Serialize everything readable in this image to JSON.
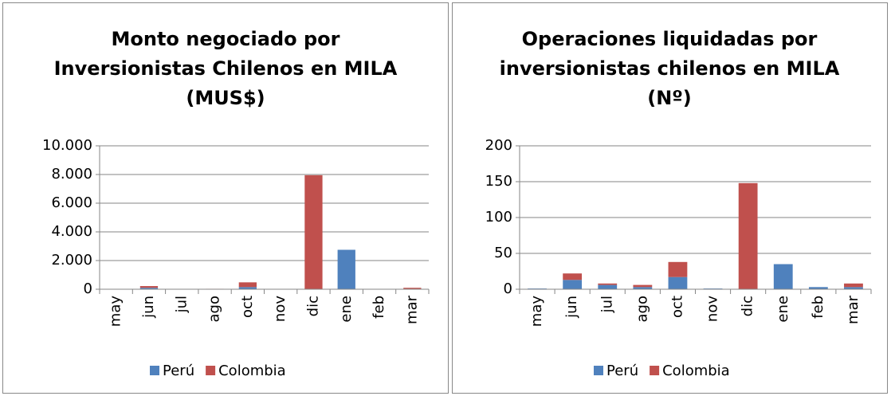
{
  "chart_data": [
    {
      "type": "stacked_bar",
      "title": [
        "Monto negociado por",
        "Inversionistas Chilenos en MILA",
        "(MUS$)"
      ],
      "categories": [
        "may",
        "jun",
        "jul",
        "ago",
        "oct",
        "nov",
        "dic",
        "ene",
        "feb",
        "mar"
      ],
      "series": [
        {
          "name": "Perú",
          "color": "#4f81bd",
          "values": [
            0,
            100,
            20,
            10,
            150,
            0,
            0,
            2750,
            20,
            30
          ]
        },
        {
          "name": "Colombia",
          "color": "#c0504d",
          "values": [
            10,
            120,
            0,
            20,
            330,
            0,
            7950,
            0,
            0,
            70
          ]
        }
      ],
      "ylim": [
        0,
        10000
      ],
      "yticks": [
        0,
        {
          "value": 2000,
          "label": "2.000"
        },
        {
          "value": 4000,
          "label": "4.000"
        },
        {
          "value": 6000,
          "label": "6.000"
        },
        {
          "value": 8000,
          "label": "8.000"
        },
        {
          "value": 10000,
          "label": "10.000"
        }
      ],
      "grid": true,
      "legend": "bottom"
    },
    {
      "type": "stacked_bar",
      "title": [
        "Operaciones liquidadas por",
        "inversionistas chilenos en MILA",
        "(Nº)"
      ],
      "categories": [
        "may",
        "jun",
        "jul",
        "ago",
        "oct",
        "nov",
        "dic",
        "ene",
        "feb",
        "mar"
      ],
      "series": [
        {
          "name": "Perú",
          "color": "#4f81bd",
          "values": [
            1,
            13,
            6,
            3,
            17,
            1,
            0,
            35,
            3,
            3
          ]
        },
        {
          "name": "Colombia",
          "color": "#c0504d",
          "values": [
            0,
            9,
            2,
            3,
            21,
            0,
            148,
            0,
            0,
            5
          ]
        }
      ],
      "ylim": [
        0,
        200
      ],
      "yticks": [
        0,
        50,
        100,
        150,
        200
      ],
      "grid": true,
      "legend": "bottom"
    }
  ]
}
